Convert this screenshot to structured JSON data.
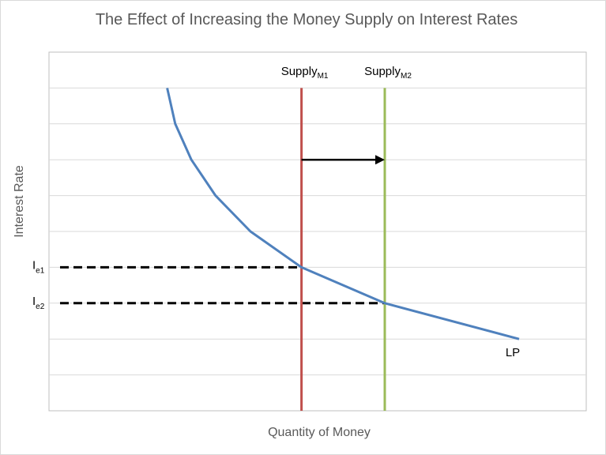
{
  "chart_data": {
    "type": "line",
    "title": "The Effect of Increasing the Money Supply on Interest Rates",
    "xlabel": "Quantity of Money",
    "ylabel": "Interest Rate",
    "xlim": [
      0,
      10
    ],
    "ylim": [
      0,
      10
    ],
    "grid": true,
    "grid_y_ticks": [
      0,
      1,
      2,
      3,
      4,
      5,
      6,
      7,
      8,
      9,
      10
    ],
    "x_tick_labels_shown": false,
    "y_tick_labels_shown": false,
    "series": [
      {
        "name": "LP",
        "color": "#4f81bd",
        "x": [
          2.2,
          2.35,
          2.65,
          3.1,
          3.75,
          4.7,
          6.25,
          8.75
        ],
        "y": [
          9.0,
          8.0,
          7.0,
          6.0,
          5.0,
          4.0,
          3.0,
          2.0
        ]
      }
    ],
    "supply_lines": [
      {
        "name": "Supply",
        "sub": "M1",
        "x": 4.7,
        "color": "#c0504d"
      },
      {
        "name": "Supply",
        "sub": "M2",
        "x": 6.25,
        "color": "#9bbb59"
      }
    ],
    "arrow": {
      "from_x": 4.7,
      "to_x": 6.25,
      "y": 7.0,
      "color": "#000000"
    },
    "equilibria": [
      {
        "label": "I",
        "sub": "e1",
        "y": 4.0,
        "x_end": 4.7
      },
      {
        "label": "I",
        "sub": "e2",
        "y": 3.0,
        "x_end": 6.25
      }
    ],
    "curve_label": "LP",
    "colors": {
      "grid": "#d9d9d9",
      "text": "#595959",
      "dashed": "#000000"
    }
  }
}
